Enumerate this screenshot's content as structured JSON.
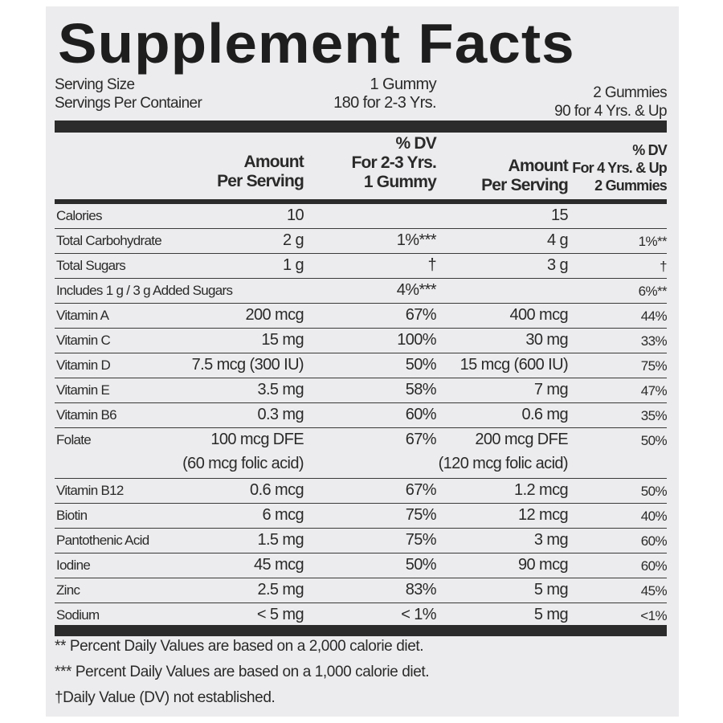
{
  "title": "Supplement Facts",
  "serving": {
    "size_label": "Serving Size",
    "servings_label": "Servings Per Container",
    "size_1": "1 Gummy",
    "servings_1": "180 for 2-3 Yrs.",
    "size_2": "2 Gummies",
    "servings_2": "90 for 4 Yrs. & Up"
  },
  "headers": {
    "amount_1_a": "Amount",
    "amount_1_b": "Per Serving",
    "dv_1_a": "% DV",
    "dv_1_b": "For 2-3 Yrs.",
    "dv_1_c": "1 Gummy",
    "amount_2_a": "Amount",
    "amount_2_b": "Per Serving",
    "dv_2_a": "% DV",
    "dv_2_b": "For 4 Yrs. & Up",
    "dv_2_c": "2 Gummies"
  },
  "rows": [
    {
      "name": "Calories",
      "a1": "10",
      "d1": "",
      "a2": "15",
      "d2": ""
    },
    {
      "name": "Total Carbohydrate",
      "a1": "2 g",
      "d1": "1%***",
      "a2": "4 g",
      "d2": "1%**"
    },
    {
      "name": " Total Sugars",
      "a1": "1 g",
      "d1": "†",
      "a2": "3 g",
      "d2": "†"
    },
    {
      "name": "  Includes 1 g / 3 g Added Sugars",
      "a1": "",
      "d1": "4%***",
      "a2": "",
      "d2": "6%**"
    },
    {
      "name": "Vitamin A",
      "a1": "200 mcg",
      "d1": "67%",
      "a2": "400 mcg",
      "d2": "44%"
    },
    {
      "name": "Vitamin C",
      "a1": "15 mg",
      "d1": "100%",
      "a2": "30 mg",
      "d2": "33%"
    },
    {
      "name": "Vitamin D",
      "a1": "7.5 mcg (300 IU)",
      "d1": "50%",
      "a2": "15 mcg (600 IU)",
      "d2": "75%"
    },
    {
      "name": "Vitamin E",
      "a1": "3.5 mg",
      "d1": "58%",
      "a2": "7 mg",
      "d2": "47%"
    },
    {
      "name": "Vitamin B6",
      "a1": "0.3 mg",
      "d1": "60%",
      "a2": "0.6 mg",
      "d2": "35%"
    },
    {
      "name": "Folate",
      "a1": "100 mcg DFE",
      "a1b": "(60 mcg folic acid)",
      "d1": "67%",
      "a2": "200 mcg DFE",
      "a2b": "(120 mcg folic acid)",
      "d2": "50%"
    },
    {
      "name": "Vitamin B12",
      "a1": "0.6 mcg",
      "d1": "67%",
      "a2": "1.2 mcg",
      "d2": "50%"
    },
    {
      "name": "Biotin",
      "a1": "6 mcg",
      "d1": "75%",
      "a2": "12 mcg",
      "d2": "40%"
    },
    {
      "name": "Pantothenic Acid",
      "a1": "1.5 mg",
      "d1": "75%",
      "a2": "3 mg",
      "d2": "60%"
    },
    {
      "name": "Iodine",
      "a1": "45 mcg",
      "d1": "50%",
      "a2": "90 mcg",
      "d2": "60%"
    },
    {
      "name": "Zinc",
      "a1": "2.5 mg",
      "d1": "83%",
      "a2": "5 mg",
      "d2": "45%"
    },
    {
      "name": "Sodium",
      "a1": "< 5 mg",
      "d1": "< 1%",
      "a2": "5 mg",
      "d2": "<1%"
    }
  ],
  "footnotes": [
    "** Percent Daily Values are based on a 2,000 calorie diet.",
    "*** Percent Daily Values are based on a 1,000 calorie diet.",
    "†Daily Value (DV) not established."
  ]
}
